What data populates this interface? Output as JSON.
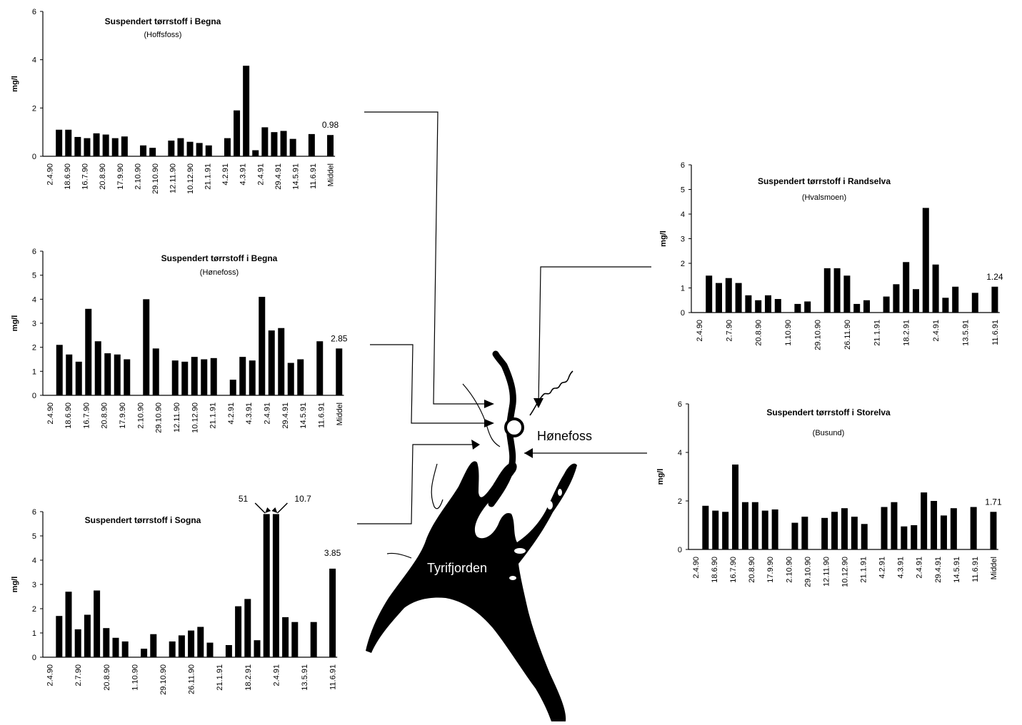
{
  "map": {
    "city_label": "Hønefoss",
    "lake_label": "Tyrifjorden"
  },
  "chart_data": [
    {
      "id": "begna-hoffsfoss",
      "type": "bar",
      "title": "Suspendert tørrstoff i Begna",
      "subtitle": "(Hoffsfoss)",
      "ylabel": "mg/l",
      "ylim": [
        0,
        6
      ],
      "yticks": [
        0,
        2,
        4,
        6
      ],
      "xtick_labels": [
        "2.4.90",
        "18.6.90",
        "16.7.90",
        "20.8.90",
        "17.9.90",
        "2.10.90",
        "29.10.90",
        "12.11.90",
        "10.12.90",
        "21.1.91",
        "4.2.91",
        "4.3.91",
        "2.4.91",
        "29.4.91",
        "14.5.91",
        "11.6.91",
        "Middel"
      ],
      "values": [
        null,
        1.1,
        1.1,
        0.8,
        0.75,
        0.95,
        0.9,
        0.75,
        0.82,
        null,
        0.45,
        0.35,
        null,
        0.65,
        0.75,
        0.6,
        0.55,
        0.45,
        null,
        0.75,
        1.9,
        3.75,
        0.25,
        1.2,
        1.0,
        1.05,
        0.72,
        null,
        0.92,
        null,
        0.88
      ],
      "annotations": [
        {
          "text": "0.98",
          "index": 30
        }
      ]
    },
    {
      "id": "begna-honefoss",
      "type": "bar",
      "title": "Suspendert tørrstoff i Begna",
      "subtitle": "(Hønefoss)",
      "ylabel": "mg/l",
      "ylim": [
        0,
        6
      ],
      "yticks": [
        0,
        1,
        2,
        3,
        4,
        5,
        6
      ],
      "xtick_labels": [
        "2.4.90",
        "18.6.90",
        "16.7.90",
        "20.8.90",
        "17.9.90",
        "2.10.90",
        "29.10.90",
        "12.11.90",
        "10.12.90",
        "21.1.91",
        "4.2.91",
        "4.3.91",
        "2.4.91",
        "29.4.91",
        "14.5.91",
        "11.6.91",
        "Middel"
      ],
      "values": [
        null,
        2.1,
        1.7,
        1.4,
        3.6,
        2.25,
        1.75,
        1.7,
        1.5,
        null,
        4.0,
        1.95,
        null,
        1.45,
        1.4,
        1.6,
        1.5,
        1.55,
        null,
        0.65,
        1.6,
        1.45,
        4.1,
        2.7,
        2.8,
        1.35,
        1.5,
        null,
        2.25,
        null,
        1.95
      ],
      "annotations": [
        {
          "text": "2.85",
          "index": 30
        }
      ]
    },
    {
      "id": "sogna",
      "type": "bar",
      "title": "Suspendert tørrstoff i Sogna",
      "subtitle": "",
      "ylabel": "mg/l",
      "ylim": [
        0,
        6
      ],
      "yticks": [
        0,
        1,
        2,
        3,
        4,
        5,
        6
      ],
      "xtick_labels": [
        "2.4.90",
        "2.7.90",
        "20.8.90",
        "1.10.90",
        "29.10.90",
        "26.11.90",
        "21.1.91",
        "18.2.91",
        "2.4.91",
        "13.5.91",
        "11.6.91"
      ],
      "values": [
        null,
        1.7,
        2.7,
        1.15,
        1.75,
        2.75,
        1.2,
        0.8,
        0.65,
        null,
        0.35,
        0.95,
        null,
        0.65,
        0.9,
        1.1,
        1.25,
        0.6,
        null,
        0.5,
        2.1,
        2.4,
        0.7,
        5.9,
        5.9,
        1.65,
        1.45,
        null,
        1.45,
        null,
        3.65
      ],
      "annotations": [
        {
          "text": "51",
          "index": 23
        },
        {
          "text": "10.7",
          "index": 24
        },
        {
          "text": "3.85",
          "index": 30
        }
      ]
    },
    {
      "id": "randselva",
      "type": "bar",
      "title": "Suspendert tørrstoff i Randselva",
      "subtitle": "(Hvalsmoen)",
      "ylabel": "mg/l",
      "ylim": [
        0,
        6
      ],
      "yticks": [
        0,
        1,
        2,
        3,
        4,
        5,
        6
      ],
      "xtick_labels": [
        "2.4.90",
        "2.7.90",
        "20.8.90",
        "1.10.90",
        "29.10.90",
        "26.11.90",
        "21.1.91",
        "18.2.91",
        "2.4.91",
        "13.5.91",
        "11.6.91"
      ],
      "values": [
        null,
        1.5,
        1.2,
        1.4,
        1.2,
        0.7,
        0.5,
        0.7,
        0.55,
        null,
        0.35,
        0.45,
        null,
        1.8,
        1.8,
        1.5,
        0.35,
        0.5,
        null,
        0.65,
        1.15,
        2.05,
        0.95,
        4.25,
        1.95,
        0.6,
        1.05,
        null,
        0.8,
        null,
        1.05
      ],
      "annotations": [
        {
          "text": "1.24",
          "index": 30
        }
      ]
    },
    {
      "id": "storelva",
      "type": "bar",
      "title": "Suspendert tørrstoff i Storelva",
      "subtitle": "(Busund)",
      "ylabel": "mg/l",
      "ylim": [
        0,
        6
      ],
      "yticks": [
        0,
        2,
        4,
        6
      ],
      "xtick_labels": [
        "2.4.90",
        "18.6.90",
        "16.7.90",
        "20.8.90",
        "17.9.90",
        "2.10.90",
        "29.10.90",
        "12.11.90",
        "10.12.90",
        "21.1.91",
        "4.2.91",
        "4.3.91",
        "2.4.91",
        "29.4.91",
        "14.5.91",
        "11.6.91",
        "Middel"
      ],
      "values": [
        null,
        1.8,
        1.6,
        1.55,
        3.5,
        1.95,
        1.95,
        1.6,
        1.65,
        null,
        1.1,
        1.35,
        null,
        1.3,
        1.55,
        1.7,
        1.35,
        1.05,
        null,
        1.75,
        1.95,
        0.95,
        1.0,
        2.35,
        2.0,
        1.4,
        1.7,
        null,
        1.75,
        null,
        1.55
      ],
      "annotations": [
        {
          "text": "1.71",
          "index": 30
        }
      ]
    }
  ]
}
